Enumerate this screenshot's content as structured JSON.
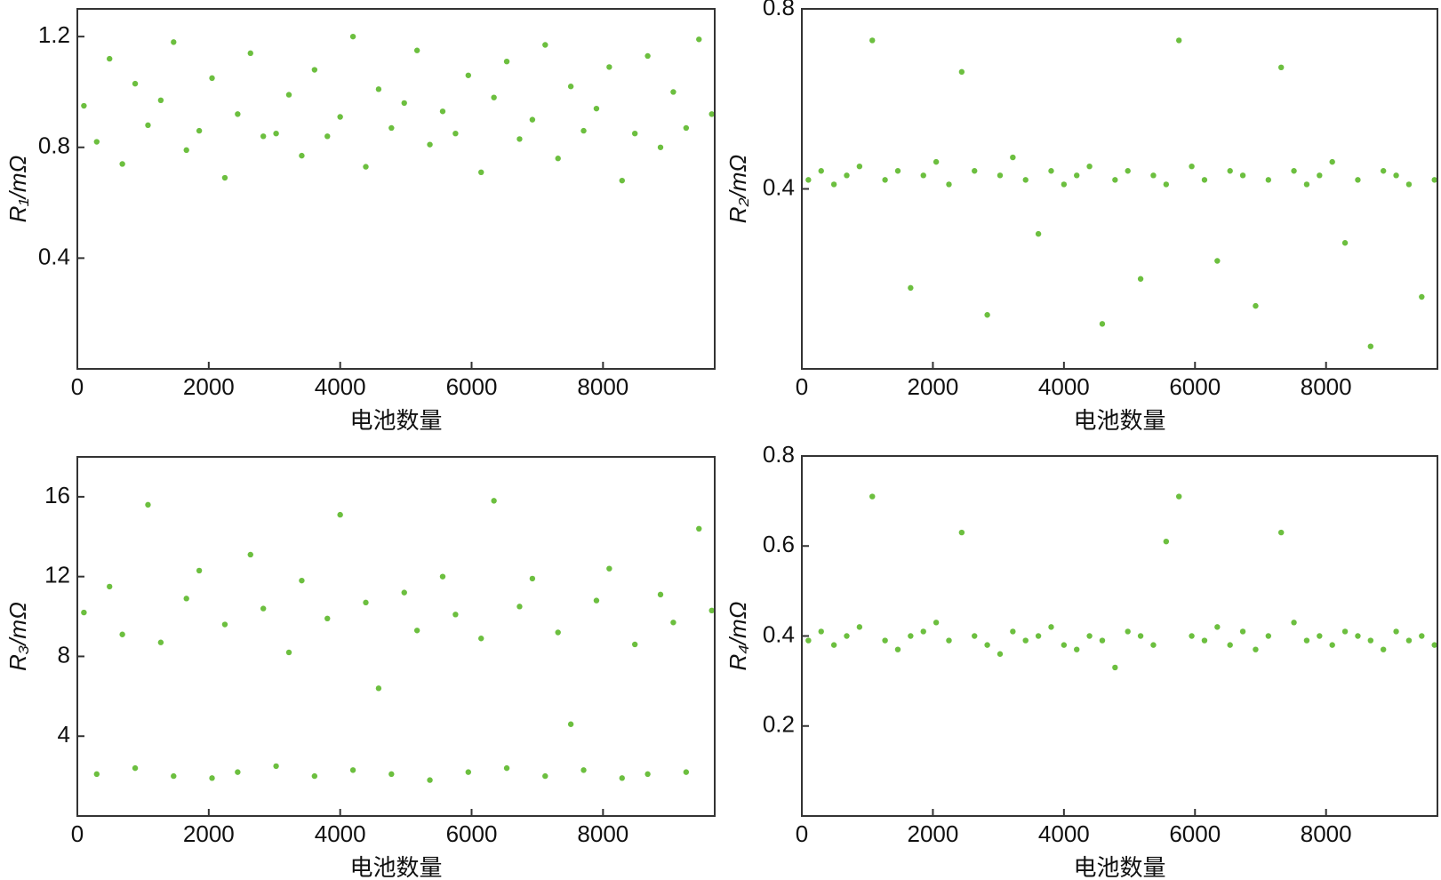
{
  "chart_data": [
    {
      "type": "scatter",
      "x_label": "电池数量",
      "y_label": "R₁/mΩ",
      "color": "#6cbf3f",
      "xlim": [
        0,
        9700
      ],
      "xticks": [
        0,
        2000,
        4000,
        6000,
        8000
      ],
      "ylim": [
        0,
        1.3
      ],
      "yticks": [
        0.4,
        0.8,
        1.2
      ],
      "x": [
        100,
        295,
        490,
        685,
        880,
        1075,
        1270,
        1465,
        1660,
        1855,
        2050,
        2245,
        2440,
        2635,
        2830,
        3025,
        3220,
        3415,
        3610,
        3805,
        4000,
        4195,
        4390,
        4585,
        4780,
        4975,
        5170,
        5365,
        5560,
        5755,
        5950,
        6145,
        6340,
        6535,
        6730,
        6925,
        7120,
        7315,
        7510,
        7705,
        7900,
        8095,
        8290,
        8485,
        8680,
        8875,
        9070,
        9265,
        9460,
        9655
      ],
      "values": [
        0.95,
        0.82,
        1.12,
        0.74,
        1.03,
        0.88,
        0.97,
        1.18,
        0.79,
        0.86,
        1.05,
        0.69,
        0.92,
        1.14,
        0.84,
        0.85,
        0.99,
        0.77,
        1.08,
        0.84,
        0.91,
        1.2,
        0.73,
        1.01,
        0.87,
        0.96,
        1.15,
        0.81,
        0.93,
        0.85,
        1.06,
        0.71,
        0.98,
        1.11,
        0.83,
        0.9,
        1.17,
        0.76,
        1.02,
        0.86,
        0.94,
        1.09,
        0.68,
        0.85,
        1.13,
        0.8,
        1.0,
        0.87,
        1.19,
        0.92
      ]
    },
    {
      "type": "scatter",
      "x_label": "电池数量",
      "y_label": "R₂/mΩ",
      "color": "#6cbf3f",
      "xlim": [
        0,
        9700
      ],
      "xticks": [
        0,
        2000,
        4000,
        6000,
        8000
      ],
      "ylim": [
        0,
        0.8
      ],
      "yticks": [
        0.4,
        0.8
      ],
      "x": [
        100,
        295,
        490,
        685,
        880,
        1075,
        1270,
        1465,
        1660,
        1855,
        2050,
        2245,
        2440,
        2635,
        2830,
        3025,
        3220,
        3415,
        3610,
        3805,
        4000,
        4195,
        4390,
        4585,
        4780,
        4975,
        5170,
        5365,
        5560,
        5755,
        5950,
        6145,
        6340,
        6535,
        6730,
        6925,
        7120,
        7315,
        7510,
        7705,
        7900,
        8095,
        8290,
        8485,
        8680,
        8875,
        9070,
        9265,
        9460,
        9655
      ],
      "values": [
        0.42,
        0.44,
        0.41,
        0.43,
        0.45,
        0.73,
        0.42,
        0.44,
        0.18,
        0.43,
        0.46,
        0.41,
        0.66,
        0.44,
        0.12,
        0.43,
        0.47,
        0.42,
        0.3,
        0.44,
        0.41,
        0.43,
        0.45,
        0.1,
        0.42,
        0.44,
        0.2,
        0.43,
        0.41,
        0.73,
        0.45,
        0.42,
        0.24,
        0.44,
        0.43,
        0.14,
        0.42,
        0.67,
        0.44,
        0.41,
        0.43,
        0.46,
        0.28,
        0.42,
        0.05,
        0.44,
        0.43,
        0.41,
        0.16,
        0.42
      ]
    },
    {
      "type": "scatter",
      "x_label": "电池数量",
      "y_label": "R₃/mΩ",
      "color": "#6cbf3f",
      "xlim": [
        0,
        9700
      ],
      "xticks": [
        0,
        2000,
        4000,
        6000,
        8000
      ],
      "ylim": [
        0,
        18
      ],
      "yticks": [
        4,
        8,
        12,
        16
      ],
      "x": [
        100,
        295,
        490,
        685,
        880,
        1075,
        1270,
        1465,
        1660,
        1855,
        2050,
        2245,
        2440,
        2635,
        2830,
        3025,
        3220,
        3415,
        3610,
        3805,
        4000,
        4195,
        4390,
        4585,
        4780,
        4975,
        5170,
        5365,
        5560,
        5755,
        5950,
        6145,
        6340,
        6535,
        6730,
        6925,
        7120,
        7315,
        7510,
        7705,
        7900,
        8095,
        8290,
        8485,
        8680,
        8875,
        9070,
        9265,
        9460,
        9655
      ],
      "values": [
        10.2,
        2.1,
        11.5,
        9.1,
        2.4,
        15.6,
        8.7,
        2.0,
        10.9,
        12.3,
        1.9,
        9.6,
        2.2,
        13.1,
        10.4,
        2.5,
        8.2,
        11.8,
        2.0,
        9.9,
        15.1,
        2.3,
        10.7,
        6.4,
        2.1,
        11.2,
        9.3,
        1.8,
        12.0,
        10.1,
        2.2,
        8.9,
        15.8,
        2.4,
        10.5,
        11.9,
        2.0,
        9.2,
        4.6,
        2.3,
        10.8,
        12.4,
        1.9,
        8.6,
        2.1,
        11.1,
        9.7,
        2.2,
        14.4,
        10.3
      ]
    },
    {
      "type": "scatter",
      "x_label": "电池数量",
      "y_label": "R₄/mΩ",
      "color": "#6cbf3f",
      "xlim": [
        0,
        9700
      ],
      "xticks": [
        0,
        2000,
        4000,
        6000,
        8000
      ],
      "ylim": [
        0,
        0.8
      ],
      "yticks": [
        0.2,
        0.4,
        0.6,
        0.8
      ],
      "x": [
        100,
        295,
        490,
        685,
        880,
        1075,
        1270,
        1465,
        1660,
        1855,
        2050,
        2245,
        2440,
        2635,
        2830,
        3025,
        3220,
        3415,
        3610,
        3805,
        4000,
        4195,
        4390,
        4585,
        4780,
        4975,
        5170,
        5365,
        5560,
        5755,
        5950,
        6145,
        6340,
        6535,
        6730,
        6925,
        7120,
        7315,
        7510,
        7705,
        7900,
        8095,
        8290,
        8485,
        8680,
        8875,
        9070,
        9265,
        9460,
        9655
      ],
      "values": [
        0.39,
        0.41,
        0.38,
        0.4,
        0.42,
        0.71,
        0.39,
        0.37,
        0.4,
        0.41,
        0.43,
        0.39,
        0.63,
        0.4,
        0.38,
        0.36,
        0.41,
        0.39,
        0.4,
        0.42,
        0.38,
        0.37,
        0.4,
        0.39,
        0.33,
        0.41,
        0.4,
        0.38,
        0.61,
        0.71,
        0.4,
        0.39,
        0.42,
        0.38,
        0.41,
        0.37,
        0.4,
        0.63,
        0.43,
        0.39,
        0.4,
        0.38,
        0.41,
        0.4,
        0.39,
        0.37,
        0.41,
        0.39,
        0.4,
        0.38
      ]
    }
  ]
}
